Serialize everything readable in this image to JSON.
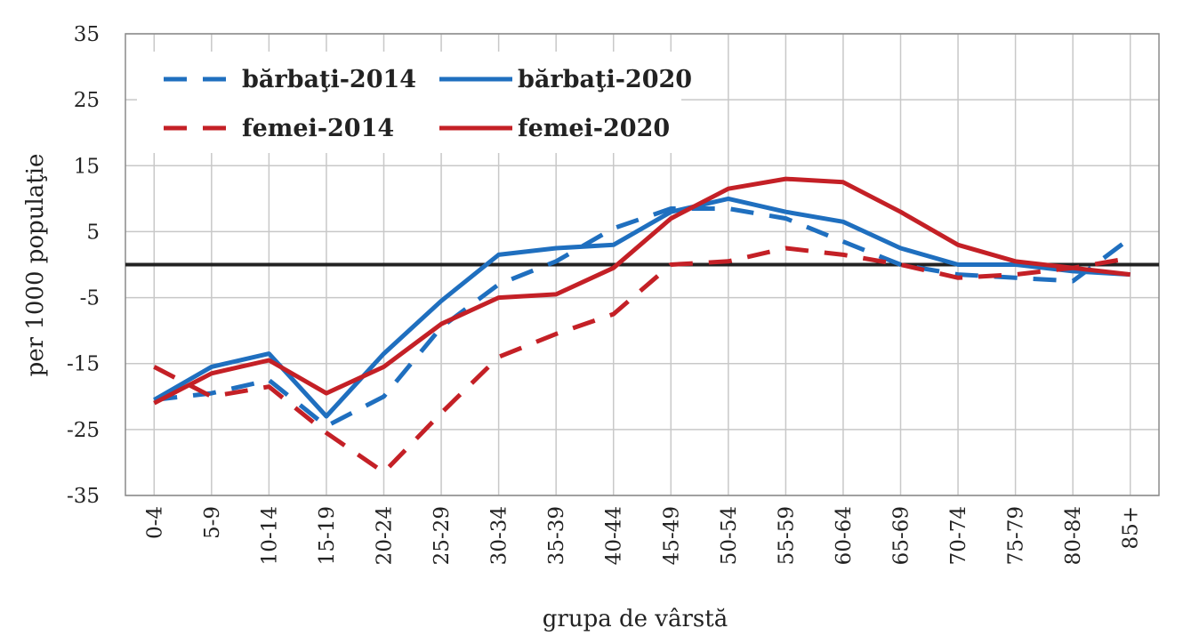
{
  "chart_data": {
    "type": "line",
    "title": "",
    "xlabel": "grupa de vârstă",
    "ylabel": "per 1000 populaţie",
    "ylim": [
      -35,
      35
    ],
    "yticks": [
      35,
      25,
      15,
      5,
      -5,
      -15,
      -25,
      -35
    ],
    "grid": true,
    "legend_position": "top-left",
    "categories": [
      "0-4",
      "5-9",
      "10-14",
      "15-19",
      "20-24",
      "25-29",
      "30-34",
      "35-39",
      "40-44",
      "45-49",
      "50-54",
      "55-59",
      "60-64",
      "65-69",
      "70-74",
      "75-79",
      "80-84",
      "85+"
    ],
    "series": [
      {
        "name": "bărbaţi-2014",
        "color": "#1f6fbf",
        "dash": true,
        "values": [
          -20.5,
          -19.5,
          -17.5,
          -24.5,
          -20.0,
          -9.5,
          -3.0,
          0.5,
          5.5,
          8.5,
          8.5,
          7.0,
          3.5,
          0.0,
          -1.5,
          -2.0,
          -2.5,
          4.0
        ]
      },
      {
        "name": "bărbaţi-2020",
        "color": "#1f6fbf",
        "dash": false,
        "values": [
          -20.5,
          -15.5,
          -13.5,
          -23.0,
          -13.5,
          -5.5,
          1.5,
          2.5,
          3.0,
          8.0,
          10.0,
          8.0,
          6.5,
          2.5,
          0.0,
          0.0,
          -1.0,
          -1.5
        ]
      },
      {
        "name": "femei-2014",
        "color": "#c42026",
        "dash": true,
        "values": [
          -15.5,
          -20.0,
          -18.5,
          -25.5,
          -31.5,
          -22.5,
          -14.0,
          -10.5,
          -7.5,
          0.0,
          0.5,
          2.5,
          1.5,
          0.0,
          -2.0,
          -1.5,
          -0.5,
          1.0
        ]
      },
      {
        "name": "femei-2020",
        "color": "#c42026",
        "dash": false,
        "values": [
          -21.0,
          -16.5,
          -14.5,
          -19.5,
          -15.5,
          -9.0,
          -5.0,
          -4.5,
          -0.5,
          7.0,
          11.5,
          13.0,
          12.5,
          8.0,
          3.0,
          0.5,
          -0.5,
          -1.5
        ]
      }
    ]
  }
}
